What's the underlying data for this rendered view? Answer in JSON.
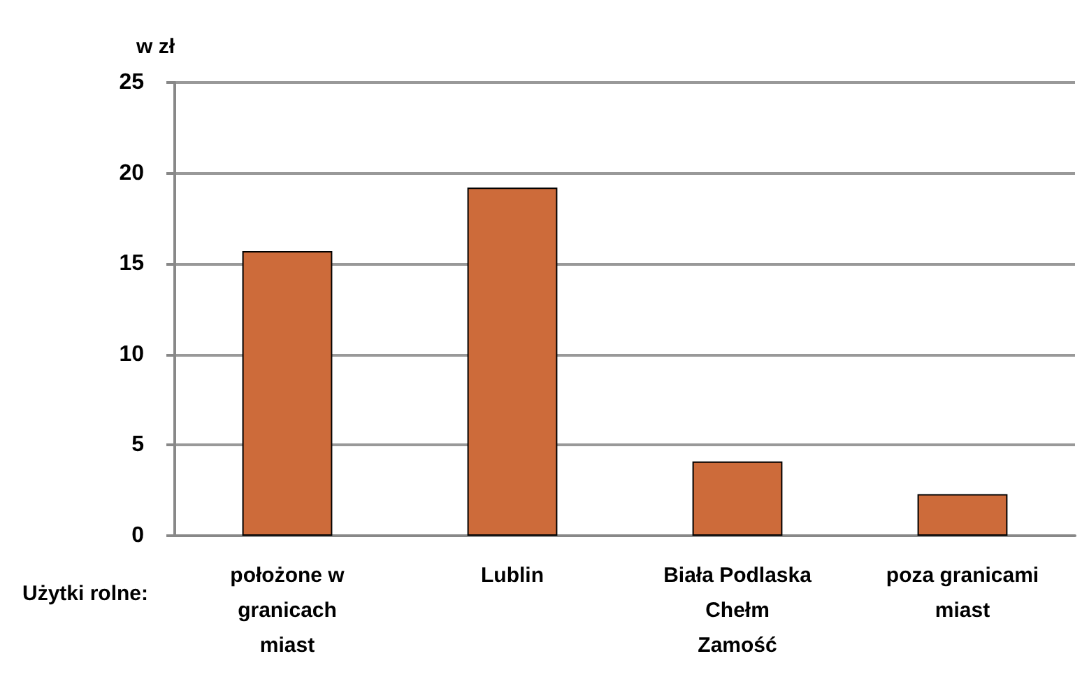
{
  "chart_data": {
    "type": "bar",
    "ylabel": "w zł",
    "categories": [
      "położone w\ngranicach\nmiast",
      "Lublin",
      "Biała Podlaska\nChełm\nZamość",
      "poza granicami\nmiast"
    ],
    "values": [
      15.7,
      19.2,
      4.1,
      2.3
    ],
    "color": "#cd6b3a",
    "ylim": [
      0,
      25
    ],
    "yticks": [
      0,
      5,
      10,
      15,
      20,
      25
    ],
    "grid": "y",
    "annotations": [
      "Użytki rolne:"
    ]
  }
}
